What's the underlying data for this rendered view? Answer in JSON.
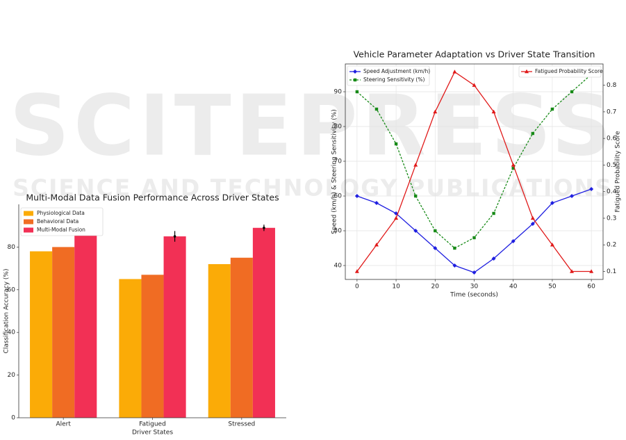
{
  "watermark": {
    "title": "SCITEPRESS",
    "subtitle": "SCIENCE AND TECHNOLOGY PUBLICATIONS"
  },
  "chart_data": [
    {
      "type": "bar",
      "title": "Multi-Modal Data Fusion Performance Across Driver States",
      "x_label": "Driver States",
      "y_label": "Classification Accuracy (%)",
      "categories": [
        "Alert",
        "Fatigued",
        "Stressed"
      ],
      "series": [
        {
          "name": "Physiological Data",
          "color": "#fbab07",
          "values": [
            78,
            65,
            72
          ]
        },
        {
          "name": "Behavioral Data",
          "color": "#f06c23",
          "values": [
            80,
            67,
            75
          ]
        },
        {
          "name": "Multi-Modal Fusion",
          "color": "#f23055",
          "values": [
            92,
            85,
            89
          ],
          "errors": [
            1.5,
            2.5,
            1.5
          ]
        }
      ],
      "ylim": [
        0,
        100
      ],
      "yticks": [
        0,
        20,
        40,
        60,
        80
      ],
      "grid": false,
      "legend": "upper left"
    },
    {
      "type": "line",
      "title": "Vehicle Parameter Adaptation vs Driver State Transition",
      "x_label": "Time (seconds)",
      "y_label": "Speed (km/h) & Steering Sensitivity (%)",
      "y2_label": "Fatigued Probability Score",
      "x": [
        0,
        5,
        10,
        15,
        20,
        25,
        30,
        35,
        40,
        45,
        50,
        55,
        60
      ],
      "series": [
        {
          "name": "Speed Adjustment (km/h)",
          "color": "#1f1fe0",
          "marker": "diamond",
          "dash": false,
          "values": [
            60,
            58,
            55,
            50,
            45,
            40,
            38,
            42,
            47,
            52,
            58,
            60,
            62
          ]
        },
        {
          "name": "Steering Sensitivity (%)",
          "color": "#178a17",
          "marker": "square",
          "dash": true,
          "values": [
            90,
            85,
            75,
            60,
            50,
            45,
            48,
            55,
            68,
            78,
            85,
            90,
            95
          ]
        },
        {
          "name": "Fatigued Probability Score",
          "color": "#e01818",
          "marker": "triangle",
          "dash": false,
          "axis": "y2",
          "values": [
            0.1,
            0.2,
            0.3,
            0.5,
            0.7,
            0.85,
            0.8,
            0.7,
            0.5,
            0.3,
            0.2,
            0.1,
            0.1
          ]
        }
      ],
      "xlim": [
        -3,
        63
      ],
      "xticks": [
        0,
        10,
        20,
        30,
        40,
        50,
        60
      ],
      "ylim": [
        36,
        98
      ],
      "yticks": [
        40,
        50,
        60,
        70,
        80,
        90
      ],
      "y2lim": [
        0.07,
        0.88
      ],
      "y2ticks": [
        0.1,
        0.2,
        0.3,
        0.4,
        0.5,
        0.6,
        0.7,
        0.8
      ],
      "grid": true
    }
  ]
}
